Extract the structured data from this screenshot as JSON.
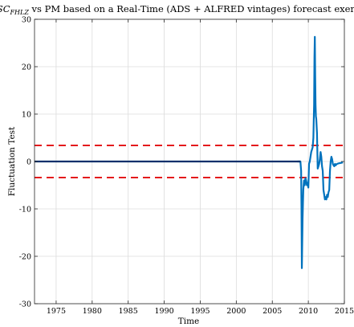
{
  "chart_data": {
    "type": "line",
    "title_prefix": "MSC",
    "title_subscript": "FHLZ",
    "title_rest": " vs PM based on a Real-Time (ADS + ALFRED vintages) forecast exercis",
    "xlabel": "Time",
    "ylabel": "Fluctuation Test",
    "xlim": [
      1972,
      2015
    ],
    "ylim": [
      -30,
      30
    ],
    "x_ticks": [
      1975,
      1980,
      1985,
      1990,
      1995,
      2000,
      2005,
      2010,
      2015
    ],
    "x_tick_labels": [
      "1975",
      "1980",
      "1985",
      "1990",
      "1995",
      "2000",
      "2005",
      "2010",
      "2015"
    ],
    "y_ticks": [
      -30,
      -20,
      -10,
      0,
      10,
      20,
      30
    ],
    "y_tick_labels": [
      "-30",
      "-20",
      "-10",
      "0",
      "10",
      "20",
      "30"
    ],
    "grid": true,
    "series": [
      {
        "color": "#0072bd",
        "x": [
          2008.5,
          2008.9,
          2009.0,
          2009.05,
          2009.1,
          2009.2,
          2009.3,
          2009.4,
          2009.5,
          2009.6,
          2009.7,
          2009.8,
          2009.9,
          2010.0,
          2010.1,
          2010.2,
          2010.3,
          2010.4,
          2010.5,
          2010.6,
          2010.7,
          2010.8,
          2010.85,
          2010.9,
          2010.95,
          2011.0,
          2011.05,
          2011.1,
          2011.2,
          2011.3,
          2011.4,
          2011.5,
          2011.6,
          2011.7,
          2011.8,
          2011.9,
          2012.0,
          2012.1,
          2012.2,
          2012.3,
          2012.4,
          2012.5,
          2012.6,
          2012.7,
          2012.8,
          2012.9,
          2013.0,
          2013.1,
          2013.2,
          2013.3,
          2013.4,
          2013.5,
          2013.6,
          2013.7,
          2013.8,
          2013.9,
          2014.0,
          2014.2,
          2014.5,
          2014.8
        ],
        "y": [
          0,
          0,
          -2,
          -10,
          -22.5,
          -12,
          -6,
          -4,
          -5,
          -3.5,
          -4,
          -5,
          -4.5,
          -5.5,
          -0.5,
          0,
          1,
          2,
          2.5,
          3,
          5,
          12,
          22,
          26.3,
          18,
          12,
          9.5,
          9,
          6,
          -1.5,
          -1,
          -0.5,
          0.5,
          2,
          1,
          -1,
          -2,
          -6,
          -7,
          -8,
          -7.5,
          -8,
          -7,
          -7.5,
          -6.5,
          -6,
          -2,
          0,
          1,
          0.5,
          -0.5,
          -0.8,
          -1.0,
          -0.5,
          -0.8,
          -0.6,
          -0.5,
          -0.4,
          -0.3,
          -0.2
        ]
      },
      {
        "color": "#08306b",
        "x": [
          1972,
          2008.9
        ],
        "y": [
          0,
          0
        ]
      }
    ],
    "reference_lines": [
      {
        "y": 3.4,
        "color": "#e41a1c",
        "style": "dashed"
      },
      {
        "y": -3.4,
        "color": "#e41a1c",
        "style": "dashed"
      }
    ]
  }
}
